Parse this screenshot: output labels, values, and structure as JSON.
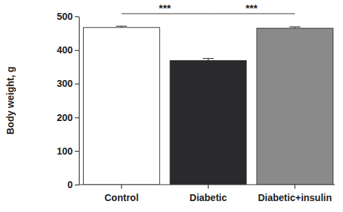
{
  "chart_data": {
    "type": "bar",
    "y_label": "Body weight, g",
    "categories": [
      "Control",
      "Diabetic",
      "Diabetic+insulin"
    ],
    "values": [
      467,
      369,
      465
    ],
    "errors": [
      4,
      6,
      4
    ],
    "colors": [
      "#ffffff",
      "#2a2a2e",
      "#8a8a8a"
    ],
    "ylim": [
      0,
      500
    ],
    "yticks": [
      0,
      100,
      200,
      300,
      400,
      500
    ],
    "annotations": [
      {
        "text": "***",
        "between": [
          "Control",
          "Diabetic"
        ]
      },
      {
        "text": "***",
        "between": [
          "Diabetic",
          "Diabetic+insulin"
        ]
      }
    ]
  }
}
